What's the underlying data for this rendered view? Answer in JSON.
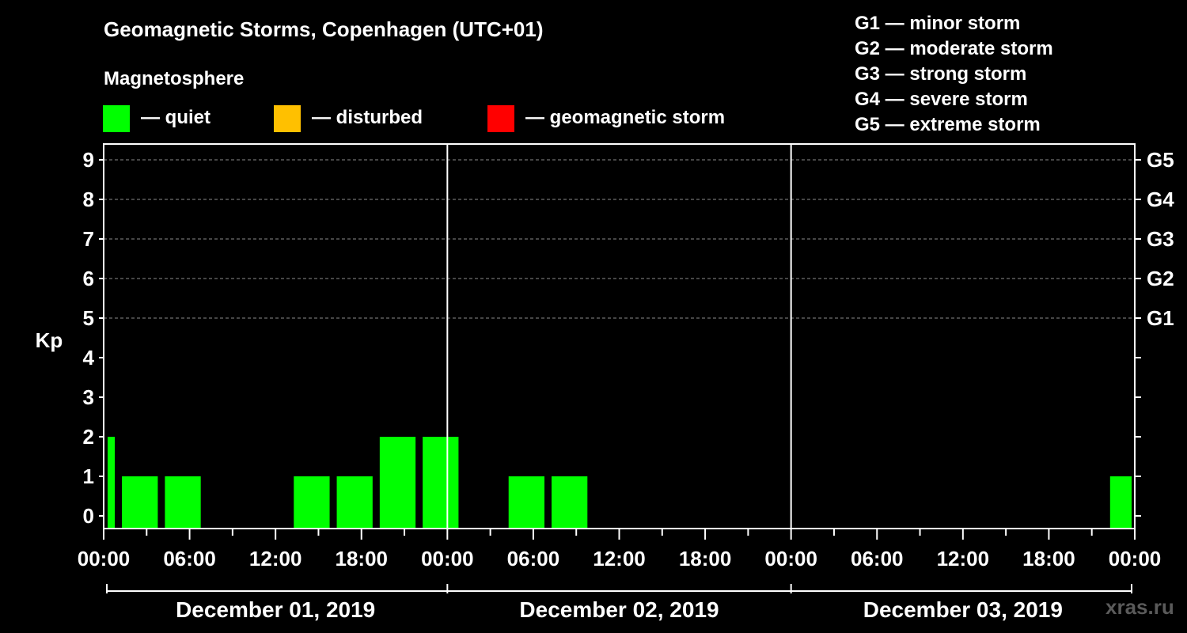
{
  "header": {
    "title": "Geomagnetic Storms, Copenhagen (UTC+01)",
    "legend_heading": "Magnetosphere"
  },
  "legend": [
    {
      "label": "— quiet",
      "color": "#00ff00"
    },
    {
      "label": "— disturbed",
      "color": "#ffc000"
    },
    {
      "label": "— geomagnetic storm",
      "color": "#ff0000"
    }
  ],
  "storm_scale": [
    "G1 — minor storm",
    "G2 — moderate storm",
    "G3 — strong storm",
    "G4 — severe storm",
    "G5 — extreme storm"
  ],
  "watermark": "xras.ru",
  "chart_data": {
    "type": "bar",
    "title": "Geomagnetic Storms, Copenhagen (UTC+01)",
    "ylabel": "Kp",
    "ylim": [
      0,
      9
    ],
    "y_ticks": [
      "0",
      "1",
      "2",
      "3",
      "4",
      "5",
      "6",
      "7",
      "8",
      "9"
    ],
    "grid_levels": [
      5,
      6,
      7,
      8,
      9
    ],
    "right_axis_labels": [
      {
        "level": 5,
        "label": "G1"
      },
      {
        "level": 6,
        "label": "G2"
      },
      {
        "level": 7,
        "label": "G3"
      },
      {
        "level": 8,
        "label": "G4"
      },
      {
        "level": 9,
        "label": "G5"
      }
    ],
    "x_range_hours": [
      0,
      72
    ],
    "x_tick_step_hours": 3,
    "x_labels": [
      {
        "hour": 0,
        "label": "00:00"
      },
      {
        "hour": 6,
        "label": "06:00"
      },
      {
        "hour": 12,
        "label": "12:00"
      },
      {
        "hour": 18,
        "label": "18:00"
      },
      {
        "hour": 24,
        "label": "00:00"
      },
      {
        "hour": 30,
        "label": "06:00"
      },
      {
        "hour": 36,
        "label": "12:00"
      },
      {
        "hour": 42,
        "label": "18:00"
      },
      {
        "hour": 48,
        "label": "00:00"
      },
      {
        "hour": 54,
        "label": "06:00"
      },
      {
        "hour": 60,
        "label": "12:00"
      },
      {
        "hour": 66,
        "label": "18:00"
      },
      {
        "hour": 72,
        "label": "00:00"
      }
    ],
    "days": [
      {
        "label": "December 01, 2019",
        "start_hour": 0
      },
      {
        "label": "December 02, 2019",
        "start_hour": 24
      },
      {
        "label": "December 03, 2019",
        "start_hour": 48
      }
    ],
    "bar_color": "#00ff00",
    "series": [
      {
        "name": "Kp",
        "bars": [
          {
            "start_hour": 0,
            "end_hour": 1,
            "value": 2
          },
          {
            "start_hour": 1,
            "end_hour": 4,
            "value": 1
          },
          {
            "start_hour": 4,
            "end_hour": 7,
            "value": 1
          },
          {
            "start_hour": 7,
            "end_hour": 10,
            "value": 0
          },
          {
            "start_hour": 10,
            "end_hour": 13,
            "value": 0
          },
          {
            "start_hour": 13,
            "end_hour": 16,
            "value": 1
          },
          {
            "start_hour": 16,
            "end_hour": 19,
            "value": 1
          },
          {
            "start_hour": 19,
            "end_hour": 22,
            "value": 2
          },
          {
            "start_hour": 22,
            "end_hour": 25,
            "value": 2
          },
          {
            "start_hour": 25,
            "end_hour": 28,
            "value": 0
          },
          {
            "start_hour": 28,
            "end_hour": 31,
            "value": 1
          },
          {
            "start_hour": 31,
            "end_hour": 34,
            "value": 1
          },
          {
            "start_hour": 34,
            "end_hour": 37,
            "value": 0
          },
          {
            "start_hour": 37,
            "end_hour": 40,
            "value": 0
          },
          {
            "start_hour": 40,
            "end_hour": 43,
            "value": 0
          },
          {
            "start_hour": 43,
            "end_hour": 46,
            "value": 0
          },
          {
            "start_hour": 46,
            "end_hour": 49,
            "value": 0
          },
          {
            "start_hour": 49,
            "end_hour": 52,
            "value": 0
          },
          {
            "start_hour": 52,
            "end_hour": 55,
            "value": 0
          },
          {
            "start_hour": 55,
            "end_hour": 58,
            "value": 0
          },
          {
            "start_hour": 58,
            "end_hour": 61,
            "value": 0
          },
          {
            "start_hour": 61,
            "end_hour": 64,
            "value": 0
          },
          {
            "start_hour": 64,
            "end_hour": 67,
            "value": 0
          },
          {
            "start_hour": 67,
            "end_hour": 70,
            "value": 0
          },
          {
            "start_hour": 70,
            "end_hour": 72,
            "value": 1
          }
        ]
      }
    ]
  }
}
